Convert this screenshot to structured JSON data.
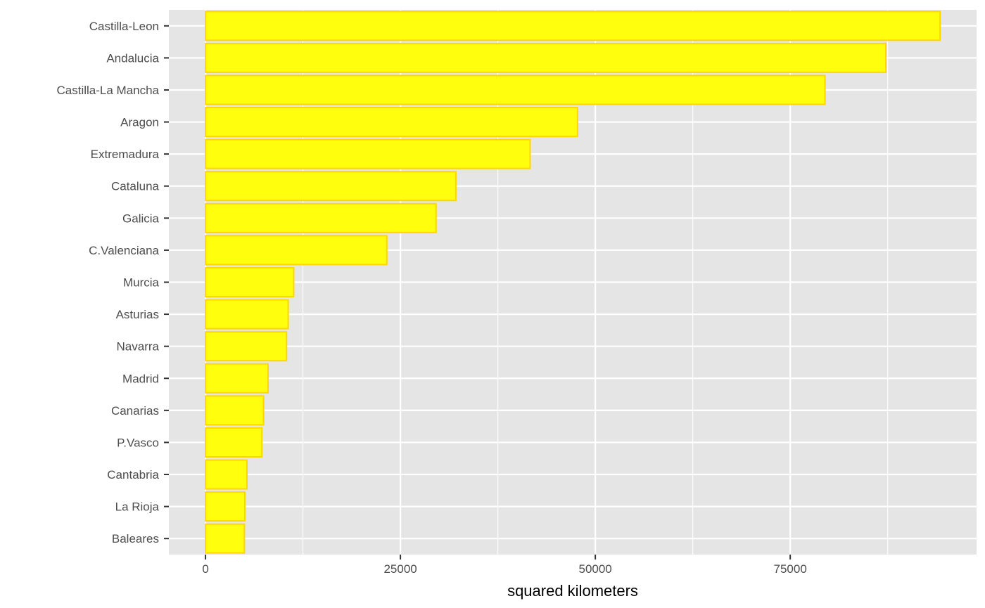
{
  "chart_data": {
    "type": "bar",
    "orientation": "horizontal",
    "title": "",
    "xlabel": "squared kilometers",
    "ylabel": "",
    "categories": [
      "Castilla-Leon",
      "Andalucia",
      "Castilla-La Mancha",
      "Aragon",
      "Extremadura",
      "Cataluna",
      "Galicia",
      "C.Valenciana",
      "Murcia",
      "Asturias",
      "Navarra",
      "Madrid",
      "Canarias",
      "P.Vasco",
      "Cantabria",
      "La Rioja",
      "Baleares"
    ],
    "values": [
      94223,
      87268,
      79461,
      47719,
      41634,
      32114,
      29574,
      23255,
      11313,
      10604,
      10391,
      8028,
      7447,
      7234,
      5321,
      5045,
      4992
    ],
    "xlim": [
      -4700,
      98900
    ],
    "xticks": [
      0,
      25000,
      50000,
      75000
    ],
    "xtick_labels": [
      "0",
      "25000",
      "50000",
      "75000"
    ],
    "grid": true,
    "legend": "none",
    "colors": {
      "panel": "#e5e5e5",
      "grid": "#ffffff",
      "bar_fill": "#ffff0d",
      "bar_outline": "#ffd700",
      "tick_text": "#4d4d4d",
      "tick_mark": "#333333"
    }
  }
}
